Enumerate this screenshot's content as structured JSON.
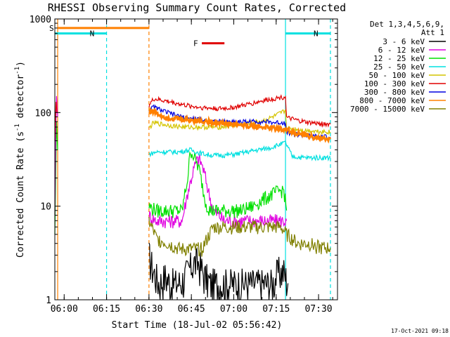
{
  "chart_data": {
    "type": "line",
    "title": "RHESSI Observing Summary Count Rates, Corrected",
    "xlabel": "Start Time (18-Jul-02 05:56:42)",
    "ylabel": "Corrected Count Rate (s",
    "ylabel_sup1": "-1",
    "ylabel_mid": " detector",
    "ylabel_sup2": "-1",
    "ylabel_end": ")",
    "x_unit": "minutes since 05:56:42",
    "xlim": [
      0,
      100
    ],
    "ylim": [
      1,
      1000
    ],
    "yscale": "log",
    "x_ticks": [
      {
        "label": "06:00",
        "value": 3.3
      },
      {
        "label": "06:15",
        "value": 18.3
      },
      {
        "label": "06:30",
        "value": 33.3
      },
      {
        "label": "06:45",
        "value": 48.3
      },
      {
        "label": "07:00",
        "value": 63.3
      },
      {
        "label": "07:15",
        "value": 78.3
      },
      {
        "label": "07:30",
        "value": 93.3
      }
    ],
    "y_ticks": [
      {
        "label": "1",
        "value": 1
      },
      {
        "label": "10",
        "value": 10
      },
      {
        "label": "100",
        "value": 100
      },
      {
        "label": "1000",
        "value": 1000
      }
    ],
    "legend": {
      "header1": "Det 1,3,4,5,6,9,",
      "header2": "Att 1",
      "placement": "right",
      "entries": [
        {
          "label": "3 - 6 keV",
          "color": "#000000"
        },
        {
          "label": "6 - 12 keV",
          "color": "#e000e0"
        },
        {
          "label": "12 - 25 keV",
          "color": "#00e000"
        },
        {
          "label": "25 - 50 keV",
          "color": "#00e0e0"
        },
        {
          "label": "50 - 100 keV",
          "color": "#d4c400"
        },
        {
          "label": "100 - 300 keV",
          "color": "#e00000"
        },
        {
          "label": "300 - 800 keV",
          "color": "#0000e0"
        },
        {
          "label": "800 - 7000 keV",
          "color": "#ff8000"
        },
        {
          "label": "7000 - 15000 keV",
          "color": "#808000"
        }
      ]
    },
    "flags": [
      {
        "label": "S",
        "color": "#ff8000",
        "start": 1.0,
        "end": 33.3,
        "level": 800
      },
      {
        "label": "N",
        "color": "#00e0e0",
        "start": 0.0,
        "end": 18.3,
        "level": 700
      },
      {
        "label": "N",
        "color": "#00e0e0",
        "start": 81.6,
        "end": 97.5,
        "level": 700
      },
      {
        "label": "F",
        "color": "#e00000",
        "start": 52.0,
        "end": 60.0,
        "level": 550
      }
    ],
    "vlines": [
      {
        "x": 1.0,
        "color": "#ff8000",
        "style": "solid"
      },
      {
        "x": 18.3,
        "color": "#00e0e0",
        "style": "dashed"
      },
      {
        "x": 33.3,
        "color": "#ff8000",
        "style": "dashed"
      },
      {
        "x": 81.6,
        "color": "#00e0e0",
        "style": "solid"
      },
      {
        "x": 97.5,
        "color": "#00e0e0",
        "style": "dashed"
      }
    ],
    "series": [
      {
        "name": "3 - 6 keV",
        "color": "#000000",
        "x": [
          33.3,
          35,
          37,
          39,
          41,
          43,
          45,
          47,
          49,
          51,
          53,
          55,
          57,
          59,
          61,
          63,
          65,
          67,
          69,
          71,
          73,
          75,
          77,
          79,
          81,
          82.5
        ],
        "y": [
          3.0,
          2.0,
          1.5,
          1.8,
          1.5,
          1.5,
          1.6,
          2.0,
          2.5,
          2.5,
          1.8,
          1.5,
          1.5,
          1.5,
          1.5,
          1.5,
          1.5,
          1.5,
          1.5,
          1.5,
          1.5,
          1.5,
          1.5,
          2.0,
          2.0,
          1.5
        ]
      },
      {
        "name": "6 - 12 keV",
        "color": "#e000e0",
        "x": [
          33.3,
          36,
          39,
          42,
          45,
          47,
          49,
          50,
          51,
          52,
          53,
          54,
          55,
          56,
          58,
          60,
          63,
          66,
          70,
          74,
          78,
          82
        ],
        "y": [
          8,
          7,
          7,
          7,
          7,
          14,
          24,
          30,
          32,
          28,
          22,
          16,
          12,
          9,
          8,
          7,
          7,
          7,
          7,
          7,
          7,
          7
        ]
      },
      {
        "name": "12 - 25 keV",
        "color": "#00e000",
        "x": [
          33.3,
          36,
          39,
          42,
          45,
          47,
          48,
          49,
          50,
          51,
          52,
          53,
          54,
          55,
          56,
          58,
          60,
          63,
          66,
          70,
          74,
          78,
          81,
          82
        ],
        "y": [
          10,
          9,
          9,
          9,
          9,
          20,
          40,
          35,
          30,
          25,
          18,
          12,
          10,
          9,
          9,
          9,
          9,
          9,
          9,
          10,
          12,
          14,
          15,
          9
        ]
      },
      {
        "name": "25 - 50 keV",
        "color": "#00e0e0",
        "x": [
          33.3,
          36,
          40,
          44,
          48,
          50,
          53,
          56,
          60,
          64,
          68,
          72,
          76,
          80,
          81.6,
          84,
          88,
          92,
          96,
          97.5
        ],
        "y": [
          36,
          38,
          38,
          38,
          40,
          38,
          36,
          35,
          35,
          36,
          38,
          40,
          42,
          46,
          48,
          34,
          33,
          33,
          33,
          33
        ]
      },
      {
        "name": "50 - 100 keV",
        "color": "#d4c400",
        "x": [
          33.3,
          35,
          38,
          42,
          46,
          50,
          54,
          58,
          62,
          66,
          70,
          74,
          78,
          81.6,
          82,
          86,
          90,
          94,
          97.5
        ],
        "y": [
          68,
          78,
          75,
          72,
          70,
          70,
          70,
          70,
          72,
          75,
          78,
          82,
          92,
          105,
          68,
          66,
          64,
          63,
          62
        ]
      },
      {
        "name": "100 - 300 keV",
        "color": "#e00000",
        "x": [
          33.3,
          35,
          38,
          42,
          46,
          50,
          54,
          58,
          62,
          66,
          70,
          74,
          78,
          81.6,
          82,
          86,
          90,
          94,
          97.5
        ],
        "y": [
          120,
          140,
          135,
          128,
          120,
          115,
          112,
          110,
          112,
          118,
          126,
          135,
          142,
          148,
          88,
          82,
          78,
          76,
          75
        ]
      },
      {
        "name": "300 - 800 keV",
        "color": "#0000e0",
        "x": [
          33.3,
          35,
          38,
          42,
          46,
          50,
          54,
          58,
          62,
          66,
          70,
          74,
          78,
          81.6,
          82,
          86,
          90,
          94,
          97.5
        ],
        "y": [
          105,
          115,
          105,
          95,
          88,
          85,
          82,
          80,
          80,
          80,
          80,
          80,
          78,
          78,
          62,
          58,
          56,
          55,
          55
        ]
      },
      {
        "name": "800 - 7000 keV",
        "color": "#ff8000",
        "x": [
          33.3,
          34,
          35,
          36,
          37,
          38,
          39,
          40,
          82,
          84,
          86,
          88,
          90,
          92,
          94,
          96,
          97.5
        ],
        "y": [
          100,
          105,
          102,
          98,
          95,
          92,
          90,
          88,
          66,
          62,
          60,
          58,
          56,
          54,
          53,
          52,
          52
        ]
      },
      {
        "name": "7000 - 15000 keV",
        "color": "#808000",
        "x": [
          33.3,
          36,
          40,
          44,
          48,
          52,
          56,
          60,
          64,
          68,
          72,
          76,
          80,
          82,
          86,
          90,
          94,
          97.5
        ],
        "y": [
          7,
          4.5,
          4,
          3.5,
          3.5,
          3.5,
          6,
          6,
          6,
          6,
          6,
          6,
          6,
          5,
          4,
          4,
          3.6,
          3.6
        ]
      }
    ],
    "edge_spikes": [
      {
        "color": "#00e000",
        "x": [
          0,
          0.3,
          0.6,
          1.0
        ],
        "y": [
          5,
          20,
          80,
          40
        ]
      },
      {
        "color": "#e000e0",
        "x": [
          0,
          0.3,
          0.6,
          1.0
        ],
        "y": [
          8,
          60,
          150,
          90
        ]
      },
      {
        "color": "#e00000",
        "x": [
          0,
          0.4,
          0.8
        ],
        "y": [
          50,
          130,
          100
        ]
      }
    ]
  },
  "footer": {
    "date_stamp": "17-Oct-2021 09:18"
  }
}
